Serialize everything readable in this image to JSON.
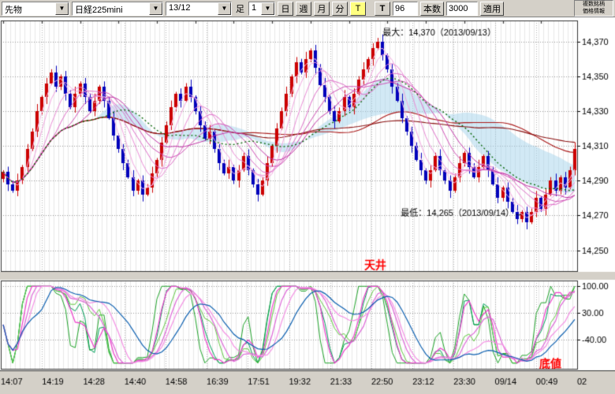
{
  "toolbar": {
    "market_select": {
      "value": "先物"
    },
    "symbol_select": {
      "value": "日経225mini"
    },
    "contract_select": {
      "value": "13/12"
    },
    "interval_label": "足",
    "interval_value": "1",
    "period_buttons": [
      {
        "id": "day",
        "label": "日"
      },
      {
        "id": "week",
        "label": "週"
      },
      {
        "id": "month",
        "label": "月"
      },
      {
        "id": "minute",
        "label": "分"
      }
    ],
    "tick_button_label": "T",
    "t_button_label": "T",
    "bars_value": "96",
    "bars_button_label": "本数",
    "count_value": "3000",
    "apply_button_label": "適用",
    "info_box": {
      "line1": "複数銘柄",
      "line2": "価格情報"
    }
  },
  "chart_data": {
    "type": "candlestick",
    "instrument": "日経225mini 13/12",
    "price_ticks": [
      14370,
      14350,
      14330,
      14310,
      14290,
      14270,
      14250
    ],
    "price_range": [
      14238,
      14382
    ],
    "time_labels": [
      "14:07",
      "14:19",
      "14:28",
      "14:40",
      "14:58",
      "16:39",
      "17:51",
      "19:32",
      "21:33",
      "22:50",
      "23:12",
      "23:30",
      "09/14",
      "00:49",
      "02"
    ],
    "closes": [
      14295,
      14288,
      14284,
      14290,
      14298,
      14308,
      14318,
      14330,
      14338,
      14346,
      14352,
      14344,
      14350,
      14340,
      14332,
      14340,
      14346,
      14338,
      14330,
      14336,
      14344,
      14336,
      14326,
      14316,
      14308,
      14300,
      14292,
      14284,
      14290,
      14282,
      14286,
      14294,
      14302,
      14312,
      14322,
      14332,
      14340,
      14336,
      14344,
      14338,
      14330,
      14322,
      14314,
      14318,
      14308,
      14300,
      14294,
      14298,
      14290,
      14296,
      14304,
      14296,
      14288,
      14282,
      14290,
      14300,
      14310,
      14320,
      14330,
      14340,
      14350,
      14358,
      14352,
      14360,
      14365,
      14355,
      14345,
      14338,
      14330,
      14324,
      14330,
      14338,
      14332,
      14340,
      14348,
      14354,
      14360,
      14366,
      14370,
      14362,
      14354,
      14344,
      14336,
      14326,
      14318,
      14310,
      14302,
      14296,
      14290,
      14296,
      14304,
      14296,
      14290,
      14284,
      14292,
      14300,
      14306,
      14298,
      14292,
      14298,
      14304,
      14296,
      14288,
      14280,
      14286,
      14278,
      14272,
      14268,
      14272,
      14266,
      14272,
      14280,
      14274,
      14282,
      14290,
      14284,
      14292,
      14286,
      14296,
      14308
    ],
    "colors": {
      "up": "#cc0000",
      "down": "#0000bb",
      "ma_fan": [
        "#f7bce8",
        "#f2a6e0",
        "#ea8cd6",
        "#de6ec8",
        "#d050b6",
        "#c034a6"
      ],
      "ma_green": "#006400",
      "ma_slow": [
        "#aa1818",
        "#8a0f0f"
      ],
      "cloud": "rgba(165,212,235,0.5)",
      "osc_green": [
        "#1fa32a",
        "#00a05a",
        "#62c943"
      ],
      "osc_magenta": [
        "#ee3ecb",
        "#de66d8",
        "#f490e4"
      ],
      "osc_blue": "#0b5fb0",
      "annotation_red": "#ff0000",
      "grid_minor": "#e7e7e7",
      "grid_major": "#b0b0b0"
    },
    "overlays": {
      "ma_fan_windows": [
        3,
        5,
        8,
        11,
        14,
        17
      ],
      "ma_green_window": 22,
      "ma_slow_windows": [
        50,
        100
      ],
      "cloud_windows": [
        20,
        42
      ]
    },
    "oscillator": {
      "ticks": [
        100,
        30,
        -40
      ],
      "range": [
        -115,
        115
      ],
      "green_windows": [
        7,
        11,
        15
      ],
      "magenta_windows": [
        9,
        14,
        18
      ],
      "blue_window": 26
    },
    "annotations": {
      "max_text": "最大：14,370（2013/09/13）",
      "max_price": 14370,
      "min_text": "最低：14,265（2013/09/14）→",
      "min_price": 14265,
      "ceiling_text": "天井",
      "bottom_text": "底値"
    }
  }
}
